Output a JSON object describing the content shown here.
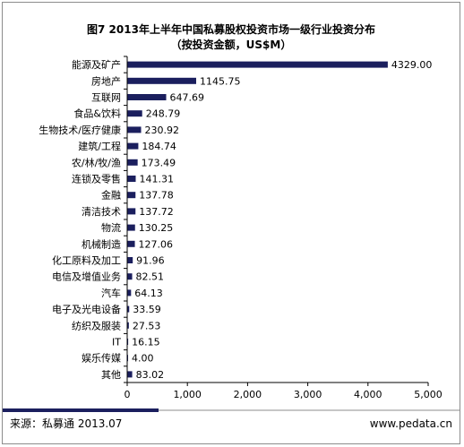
{
  "chart_data": {
    "type": "bar",
    "orientation": "horizontal",
    "title": "图7 2013年上半年中国私募股权投资市场一级行业投资分布",
    "subtitle": "（按投资金额，US$M）",
    "categories": [
      "能源及矿产",
      "房地产",
      "互联网",
      "食品&饮料",
      "生物技术/医疗健康",
      "建筑/工程",
      "农/林/牧/渔",
      "连锁及零售",
      "金融",
      "清洁技术",
      "物流",
      "机械制造",
      "化工原料及加工",
      "电信及增值业务",
      "汽车",
      "电子及光电设备",
      "纺织及服装",
      "IT",
      "娱乐传媒",
      "其他"
    ],
    "values": [
      4329.0,
      1145.75,
      647.69,
      248.79,
      230.92,
      184.74,
      173.49,
      141.31,
      137.78,
      137.72,
      130.25,
      127.06,
      91.96,
      82.51,
      64.13,
      33.59,
      27.53,
      16.15,
      4.0,
      83.02
    ],
    "value_labels": [
      "4329.00",
      "1145.75",
      "647.69",
      "248.79",
      "230.92",
      "184.74",
      "173.49",
      "141.31",
      "137.78",
      "137.72",
      "130.25",
      "127.06",
      "91.96",
      "82.51",
      "64.13",
      "33.59",
      "27.53",
      "16.15",
      "4.00",
      "83.02"
    ],
    "xlim": [
      0,
      5000
    ],
    "xticks": [
      0,
      1000,
      2000,
      3000,
      4000,
      5000
    ],
    "xtick_labels": [
      "0",
      "1,000",
      "2,000",
      "3,000",
      "4,000",
      "5,000"
    ],
    "grid": false,
    "legend": "none",
    "bar_color": "#1b1f5e"
  },
  "footer": {
    "source": "来源：私募通  2013.07",
    "site": "www.pedata.cn",
    "accent_color": "#1b1f5e"
  }
}
